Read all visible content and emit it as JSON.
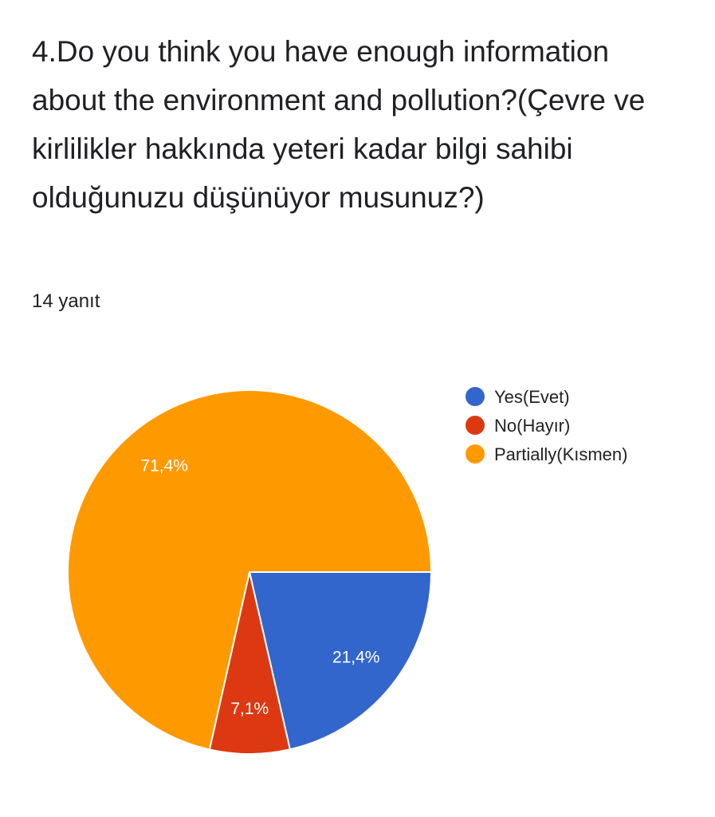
{
  "question": {
    "title": "4.Do you think you have enough information about the environment and pollution?(Çevre ve kirlilikler hakkında yeteri kadar bilgi sahibi olduğunuzu düşünüyor musunuz?)",
    "response_count": "14 yanıt"
  },
  "chart_data": {
    "type": "pie",
    "categories": [
      "Yes(Evet)",
      "No(Hayır)",
      "Partially(Kısmen)"
    ],
    "values": [
      21.4,
      7.1,
      71.4
    ],
    "labels": [
      "21,4%",
      "7,1%",
      "71,4%"
    ],
    "colors": [
      "#3366cc",
      "#dc3912",
      "#ff9900"
    ],
    "start_angle": "3 o'clock, clockwise",
    "legend_position": "right"
  }
}
